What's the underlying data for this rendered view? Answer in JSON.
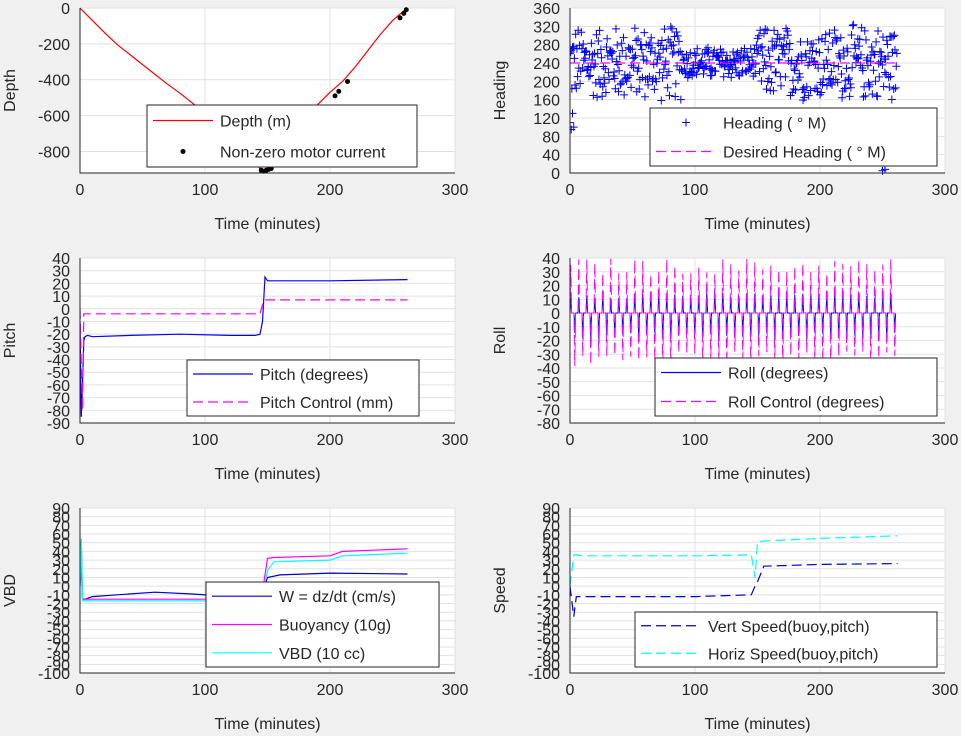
{
  "colors": {
    "background": "#f0f0f0",
    "axes_bg": "#ffffff",
    "grid": "#e1e1e1",
    "red": "#ff0000",
    "blue": "#0000ff",
    "magenta": "#ff00ff",
    "cyan": "#00ffff",
    "black": "#000000",
    "darkblue": "#0000cc"
  },
  "chart_data": [
    {
      "id": "depth",
      "type": "line",
      "xlabel": "Time (minutes)",
      "ylabel": "Depth",
      "xlim": [
        0,
        300
      ],
      "ylim": [
        -920,
        0
      ],
      "xticks": [
        "0",
        "100",
        "200",
        "300"
      ],
      "xtick_values": [
        0,
        100,
        200,
        300
      ],
      "yticks": [
        "0",
        "-200",
        "-400",
        "-600",
        "-800"
      ],
      "ytick_values": [
        0,
        -200,
        -400,
        -600,
        -800
      ],
      "grid": true,
      "legend_placement": "center",
      "series": [
        {
          "name": "Depth (m)",
          "style": "line",
          "color": "red",
          "x": [
            0,
            10,
            20,
            30,
            40,
            50,
            60,
            70,
            80,
            90,
            100,
            110,
            120,
            130,
            140,
            145,
            150,
            160,
            170,
            180,
            190,
            200,
            210,
            220,
            230,
            240,
            250,
            260,
            262
          ],
          "y": [
            0,
            -70,
            -140,
            -205,
            -260,
            -315,
            -370,
            -425,
            -475,
            -530,
            -590,
            -650,
            -720,
            -790,
            -860,
            -905,
            -900,
            -810,
            -720,
            -630,
            -540,
            -470,
            -410,
            -330,
            -240,
            -150,
            -70,
            -10,
            0
          ]
        },
        {
          "name": "Non-zero motor current",
          "style": "dots",
          "color": "black",
          "x": [
            145,
            147,
            149,
            151,
            153,
            204,
            207,
            214,
            256,
            259,
            261
          ],
          "y": [
            -905,
            -910,
            -905,
            -900,
            -895,
            -490,
            -465,
            -410,
            -55,
            -30,
            -10
          ]
        }
      ]
    },
    {
      "id": "heading",
      "type": "scatter",
      "xlabel": "Time (minutes)",
      "ylabel": "Heading",
      "xlim": [
        0,
        300
      ],
      "ylim": [
        0,
        360
      ],
      "xticks": [
        "0",
        "100",
        "200",
        "300"
      ],
      "xtick_values": [
        0,
        100,
        200,
        300
      ],
      "yticks": [
        "0",
        "40",
        "80",
        "120",
        "160",
        "200",
        "240",
        "280",
        "320",
        "360"
      ],
      "ytick_values": [
        0,
        40,
        80,
        120,
        160,
        200,
        240,
        280,
        320,
        360
      ],
      "grid": true,
      "legend_placement": "bottom-right",
      "series": [
        {
          "name": "Heading (   ° M)",
          "style": "plus",
          "color": "blue",
          "band": {
            "x_start": 0,
            "x_end": 262,
            "center": 240,
            "amplitude": 90,
            "count": 520
          },
          "x": [
            0,
            1,
            2,
            3,
            250,
            252
          ],
          "y": [
            110,
            95,
            130,
            100,
            5,
            8
          ]
        },
        {
          "name": "Desired Heading (    ° M)",
          "style": "dashed",
          "color": "magenta",
          "x": [
            0,
            262
          ],
          "y": [
            240,
            240
          ]
        }
      ]
    },
    {
      "id": "pitch",
      "type": "line",
      "xlabel": "Time (minutes)",
      "ylabel": "Pitch",
      "xlim": [
        0,
        300
      ],
      "ylim": [
        -90,
        40
      ],
      "xticks": [
        "0",
        "100",
        "200",
        "300"
      ],
      "xtick_values": [
        0,
        100,
        200,
        300
      ],
      "yticks": [
        "40",
        "30",
        "20",
        "10",
        "0",
        "-10",
        "-20",
        "-30",
        "-40",
        "-50",
        "-60",
        "-70",
        "-80",
        "-90"
      ],
      "ytick_values": [
        40,
        30,
        20,
        10,
        0,
        -10,
        -20,
        -30,
        -40,
        -50,
        -60,
        -70,
        -80,
        -90
      ],
      "grid": true,
      "legend_placement": "bottom-right",
      "series": [
        {
          "name": "Pitch (degrees)",
          "style": "line",
          "color": "blue",
          "x": [
            0,
            1,
            2,
            3,
            4,
            6,
            10,
            40,
            80,
            120,
            140,
            144,
            146,
            148,
            150,
            155,
            200,
            262
          ],
          "y": [
            -10,
            -85,
            -60,
            -25,
            -22,
            -21,
            -22,
            -21,
            -20,
            -21,
            -21,
            -20,
            -10,
            25,
            22,
            22,
            22,
            23
          ]
        },
        {
          "name": "Pitch Control (mm)",
          "style": "dashed",
          "color": "magenta",
          "x": [
            0,
            2,
            3,
            10,
            144,
            147,
            150,
            262
          ],
          "y": [
            0,
            -80,
            -4,
            -4,
            -4,
            7,
            7,
            7
          ]
        }
      ]
    },
    {
      "id": "roll",
      "type": "line",
      "xlabel": "Time (minutes)",
      "ylabel": "Roll",
      "xlim": [
        0,
        300
      ],
      "ylim": [
        -80,
        40
      ],
      "xticks": [
        "0",
        "100",
        "200",
        "300"
      ],
      "xtick_values": [
        0,
        100,
        200,
        300
      ],
      "yticks": [
        "40",
        "30",
        "20",
        "10",
        "0",
        "-10",
        "-20",
        "-30",
        "-40",
        "-50",
        "-60",
        "-70",
        "-80"
      ],
      "ytick_values": [
        40,
        30,
        20,
        10,
        0,
        -10,
        -20,
        -30,
        -40,
        -50,
        -60,
        -70,
        -80
      ],
      "grid": true,
      "legend_placement": "bottom-right",
      "series": [
        {
          "name": "Roll (degrees)",
          "style": "line",
          "color": "blue",
          "oscillation": {
            "x_start": 0,
            "x_end": 262,
            "period": 6.4,
            "spike_up": 15,
            "spike_down": -20
          }
        },
        {
          "name": "Roll Control (degrees)",
          "style": "dashed",
          "color": "magenta",
          "oscillation": {
            "x_start": 0,
            "x_end": 262,
            "period": 6.4,
            "spike_up": 40,
            "spike_down": -40
          }
        }
      ]
    },
    {
      "id": "vbd",
      "type": "line",
      "xlabel": "Time (minutes)",
      "ylabel": "VBD",
      "xlim": [
        0,
        300
      ],
      "ylim": [
        -100,
        90
      ],
      "xticks": [
        "0",
        "100",
        "200",
        "300"
      ],
      "xtick_values": [
        0,
        100,
        200,
        300
      ],
      "yticks": [
        "90",
        "80",
        "70",
        "60",
        "50",
        "40",
        "30",
        "20",
        "10",
        "0",
        "-10",
        "-20",
        "-30",
        "-40",
        "-50",
        "-60",
        "-70",
        "-80",
        "-90",
        "-100"
      ],
      "ytick_values": [
        90,
        80,
        70,
        60,
        50,
        40,
        30,
        20,
        10,
        0,
        -10,
        -20,
        -30,
        -40,
        -50,
        -60,
        -70,
        -80,
        -90,
        -100
      ],
      "grid": true,
      "legend_placement": "bottom-right",
      "series": [
        {
          "name": "W = dz/dt (cm/s)",
          "style": "line",
          "color": "darkblue",
          "x": [
            0,
            1,
            2,
            4,
            10,
            30,
            60,
            90,
            120,
            145,
            150,
            160,
            200,
            262
          ],
          "y": [
            10,
            50,
            -15,
            -15,
            -12,
            -10,
            -7,
            -9,
            -12,
            -13,
            10,
            13,
            15,
            14
          ]
        },
        {
          "name": "Buoyancy (10g)",
          "style": "line",
          "color": "magenta",
          "x": [
            0,
            1,
            2,
            4,
            145,
            150,
            155,
            200,
            210,
            262
          ],
          "y": [
            0,
            20,
            -15,
            -15,
            -15,
            32,
            33,
            35,
            40,
            43
          ]
        },
        {
          "name": "VBD (10 cc)",
          "style": "line",
          "color": "cyan",
          "x": [
            0,
            1,
            2,
            4,
            145,
            150,
            155,
            200,
            210,
            262
          ],
          "y": [
            0,
            55,
            -17,
            -17,
            -17,
            18,
            28,
            30,
            35,
            38
          ]
        }
      ]
    },
    {
      "id": "speed",
      "type": "line",
      "xlabel": "Time (minutes)",
      "ylabel": "Speed",
      "xlim": [
        0,
        300
      ],
      "ylim": [
        -100,
        90
      ],
      "xticks": [
        "0",
        "100",
        "200",
        "300"
      ],
      "xtick_values": [
        0,
        100,
        200,
        300
      ],
      "yticks": [
        "90",
        "80",
        "70",
        "60",
        "50",
        "40",
        "30",
        "20",
        "10",
        "0",
        "-10",
        "-20",
        "-30",
        "-40",
        "-50",
        "-60",
        "-70",
        "-80",
        "-90",
        "-100"
      ],
      "ytick_values": [
        90,
        80,
        70,
        60,
        50,
        40,
        30,
        20,
        10,
        0,
        -10,
        -20,
        -30,
        -40,
        -50,
        -60,
        -70,
        -80,
        -90,
        -100
      ],
      "grid": true,
      "legend_placement": "bottom-right",
      "series": [
        {
          "name": "Vert Speed(buoy,pitch)",
          "style": "dashed",
          "color": "darkblue",
          "x": [
            0,
            3,
            5,
            10,
            100,
            145,
            148,
            150,
            155,
            200,
            262
          ],
          "y": [
            0,
            -35,
            -12,
            -12,
            -12,
            -10,
            0,
            5,
            23,
            25,
            26
          ]
        },
        {
          "name": "Horiz Speed(buoy,pitch)",
          "style": "dashed",
          "color": "cyan",
          "x": [
            0,
            3,
            5,
            10,
            100,
            145,
            148,
            150,
            155,
            200,
            262
          ],
          "y": [
            0,
            36,
            36,
            35,
            35,
            36,
            10,
            50,
            52,
            55,
            58
          ]
        }
      ]
    }
  ]
}
